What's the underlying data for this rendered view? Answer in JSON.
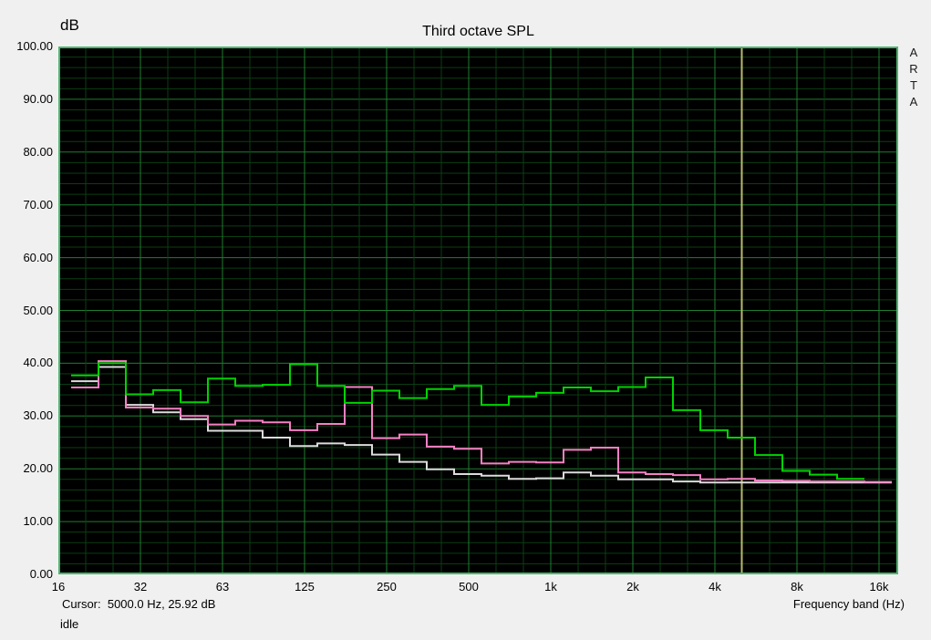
{
  "title": "Third octave SPL",
  "watermark": "ARTA",
  "y_axis": {
    "unit": "dB",
    "ticks": [
      "100.00",
      "90.00",
      "80.00",
      "70.00",
      "60.00",
      "50.00",
      "40.00",
      "30.00",
      "20.00",
      "10.00",
      "0.00"
    ]
  },
  "x_axis": {
    "label": "Frequency band (Hz)",
    "ticks": [
      "16",
      "32",
      "63",
      "125",
      "250",
      "500",
      "1k",
      "2k",
      "4k",
      "8k",
      "16k"
    ]
  },
  "status": {
    "cursor_text": "Cursor:  5000.0 Hz, 25.92 dB",
    "mode_text": "idle"
  },
  "colors": {
    "background": "#f0f0f0",
    "plot_background": "#000000",
    "plot_border": "#4cb46e",
    "grid_minor": "#0b3e12",
    "grid_major": "#1f7d31",
    "cursor_line": "#b9b96a",
    "text": "#000000"
  },
  "chart_data": {
    "type": "step-line",
    "title": "Third octave SPL",
    "xlabel": "Frequency band (Hz)",
    "ylabel": "dB",
    "ylim": [
      0,
      100
    ],
    "y_major_step": 10,
    "y_minor_step": 2,
    "grid": true,
    "x_scale": "third-octave bands (log)",
    "bands": [
      "20",
      "25",
      "31.5",
      "40",
      "50",
      "63",
      "80",
      "100",
      "125",
      "160",
      "200",
      "250",
      "315",
      "400",
      "500",
      "630",
      "800",
      "1k",
      "1.25k",
      "1.6k",
      "2k",
      "2.5k",
      "3.15k",
      "4k",
      "5k",
      "6.3k",
      "8k",
      "10k",
      "12.5k",
      "16k"
    ],
    "series": [
      {
        "name": "white",
        "color": "#dcdcdc",
        "values": [
          36.6,
          39.3,
          32.1,
          30.7,
          29.4,
          27.2,
          27.2,
          25.9,
          24.3,
          24.8,
          24.5,
          22.7,
          21.3,
          19.9,
          19.0,
          18.7,
          18.1,
          18.2,
          19.3,
          18.7,
          18.0,
          18.0,
          17.6,
          17.4,
          17.4,
          17.4,
          17.4,
          17.4,
          17.4,
          17.4
        ]
      },
      {
        "name": "pink",
        "color": "#f580c4",
        "values": [
          35.4,
          40.4,
          31.6,
          31.4,
          30.0,
          28.4,
          29.1,
          28.8,
          27.3,
          28.5,
          35.5,
          25.8,
          26.5,
          24.2,
          23.8,
          21.0,
          21.3,
          21.2,
          23.6,
          24.0,
          19.3,
          19.0,
          18.8,
          18.0,
          18.1,
          17.8,
          17.7,
          17.6,
          17.6,
          17.5
        ]
      },
      {
        "name": "green",
        "color": "#00d300",
        "values": [
          37.7,
          40.0,
          34.1,
          34.9,
          32.6,
          37.1,
          35.7,
          35.9,
          39.8,
          35.7,
          32.5,
          34.8,
          33.4,
          35.1,
          35.7,
          32.1,
          33.7,
          34.4,
          35.4,
          34.7,
          35.5,
          37.3,
          31.1,
          27.3,
          25.9,
          22.6,
          19.6,
          18.9,
          18.1,
          null
        ]
      }
    ],
    "cursor": {
      "freq_hz": 5000.0,
      "spl_db": 25.92,
      "band_index": 24
    }
  }
}
